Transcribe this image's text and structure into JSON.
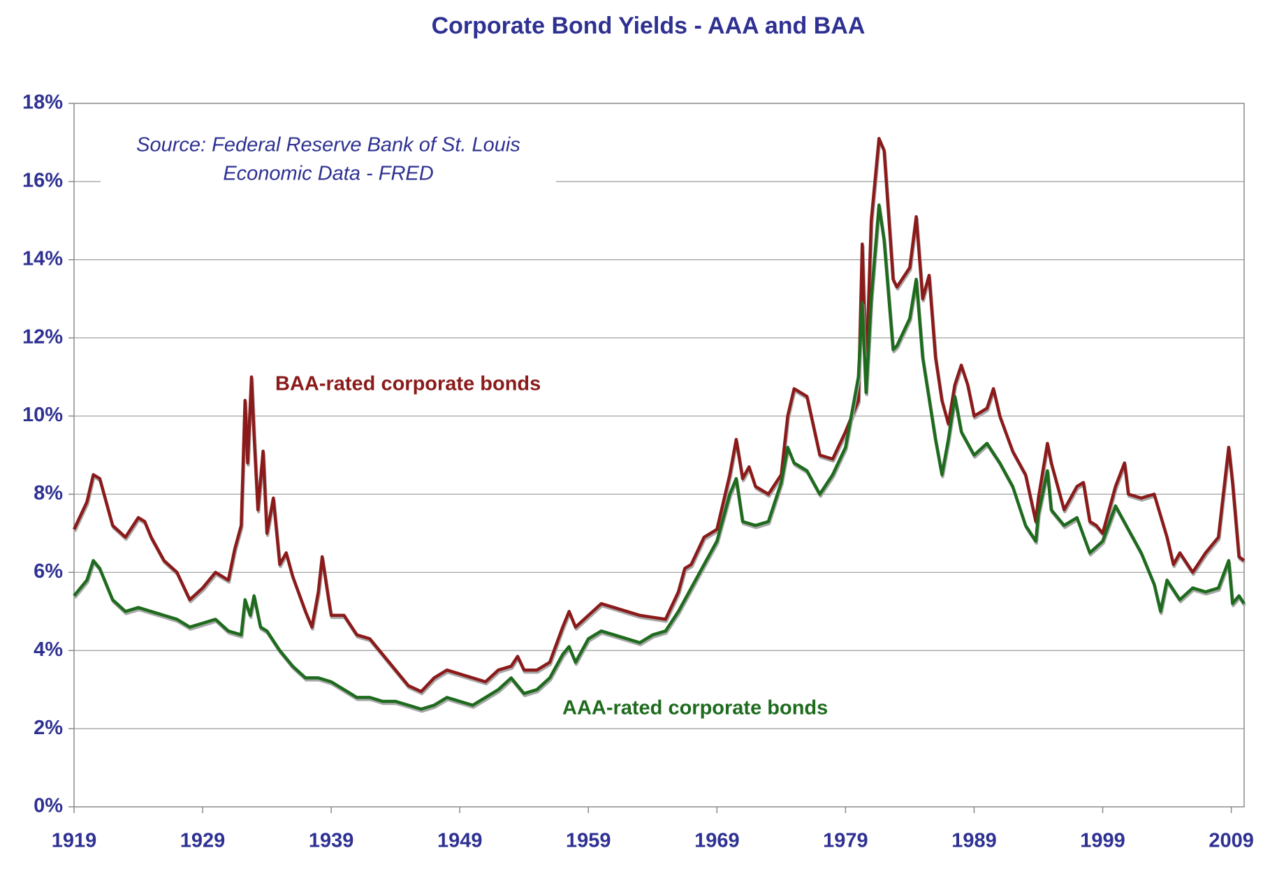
{
  "chart_data": {
    "type": "line",
    "title": "Corporate Bond Yields - AAA and BAA",
    "source": [
      "Source: Federal Reserve Bank of St. Louis",
      "Economic Data - FRED"
    ],
    "xlim": [
      1919,
      2010
    ],
    "xticks": [
      1919,
      1929,
      1939,
      1949,
      1959,
      1969,
      1979,
      1989,
      1999,
      2009
    ],
    "ylim": [
      0,
      18
    ],
    "yticks": [
      {
        "value": 0,
        "label": "0%"
      },
      {
        "value": 2,
        "label": "2%"
      },
      {
        "value": 4,
        "label": "4%"
      },
      {
        "value": 6,
        "label": "6%"
      },
      {
        "value": 8,
        "label": "8%"
      },
      {
        "value": 10,
        "label": "10%"
      },
      {
        "value": 12,
        "label": "12%"
      },
      {
        "value": 14,
        "label": "14%"
      },
      {
        "value": 16,
        "label": "16%"
      },
      {
        "value": 18,
        "label": "18%"
      }
    ],
    "grid": true,
    "series": [
      {
        "name": "BAA-rated corporate bonds",
        "color": "#8b1a1a",
        "x": [
          1919,
          1920,
          1920.5,
          1921,
          1922,
          1923,
          1924,
          1924.5,
          1925,
          1926,
          1927,
          1928,
          1929,
          1930,
          1931,
          1931.5,
          1932,
          1932.3,
          1932.5,
          1932.8,
          1933,
          1933.3,
          1933.7,
          1934,
          1934.5,
          1935,
          1935.5,
          1936,
          1937,
          1937.5,
          1938,
          1938.3,
          1938.8,
          1939,
          1940,
          1941,
          1942,
          1943,
          1944,
          1945,
          1946,
          1947,
          1948,
          1949,
          1950,
          1951,
          1952,
          1953,
          1953.5,
          1954,
          1955,
          1956,
          1957,
          1957.5,
          1958,
          1959,
          1960,
          1961,
          1962,
          1963,
          1964,
          1965,
          1966,
          1966.5,
          1967,
          1968,
          1969,
          1970,
          1970.5,
          1971,
          1971.5,
          1972,
          1973,
          1974,
          1974.5,
          1975,
          1976,
          1977,
          1978,
          1979,
          1980,
          1980.3,
          1980.6,
          1981,
          1981.6,
          1982,
          1982.7,
          1983,
          1984,
          1984.5,
          1985,
          1985.5,
          1986,
          1986.5,
          1987,
          1987.5,
          1988,
          1988.5,
          1989,
          1990,
          1990.5,
          1991,
          1992,
          1993,
          1993.8,
          1994,
          1994.7,
          1995,
          1996,
          1997,
          1997.5,
          1998,
          1998.5,
          1999,
          2000,
          2000.7,
          2001,
          2002,
          2003,
          2004,
          2004.5,
          2005,
          2006,
          2007,
          2008,
          2008.8,
          2009.1,
          2009.6,
          2010
        ],
        "values": [
          7.1,
          7.8,
          8.5,
          8.4,
          7.2,
          6.9,
          7.4,
          7.3,
          6.9,
          6.3,
          6.0,
          5.3,
          5.6,
          6.0,
          5.8,
          6.6,
          7.2,
          10.4,
          8.8,
          11.0,
          9.5,
          7.6,
          9.1,
          7.0,
          7.9,
          6.2,
          6.5,
          5.9,
          5.0,
          4.6,
          5.5,
          6.4,
          5.3,
          4.9,
          4.9,
          4.4,
          4.3,
          3.9,
          3.5,
          3.1,
          2.95,
          3.3,
          3.5,
          3.4,
          3.3,
          3.2,
          3.5,
          3.6,
          3.85,
          3.5,
          3.5,
          3.7,
          4.6,
          5.0,
          4.6,
          4.9,
          5.2,
          5.1,
          5.0,
          4.9,
          4.85,
          4.8,
          5.5,
          6.1,
          6.2,
          6.9,
          7.1,
          8.5,
          9.4,
          8.4,
          8.7,
          8.2,
          8.0,
          8.5,
          10.0,
          10.7,
          10.5,
          9.0,
          8.9,
          9.6,
          10.4,
          14.4,
          11.0,
          15.0,
          17.1,
          16.8,
          13.5,
          13.3,
          13.8,
          15.1,
          13.0,
          13.6,
          11.5,
          10.4,
          9.8,
          10.8,
          11.3,
          10.8,
          10.0,
          10.2,
          10.7,
          10.0,
          9.1,
          8.5,
          7.3,
          7.9,
          9.3,
          8.8,
          7.6,
          8.2,
          8.3,
          7.3,
          7.2,
          7.0,
          8.2,
          8.8,
          8.0,
          7.9,
          8.0,
          6.9,
          6.2,
          6.5,
          6.0,
          6.5,
          6.9,
          9.2,
          8.3,
          6.4,
          6.3
        ]
      },
      {
        "name": "AAA-rated corporate bonds",
        "color": "#1e6b1e",
        "x": [
          1919,
          1920,
          1920.5,
          1921,
          1922,
          1923,
          1924,
          1925,
          1926,
          1927,
          1928,
          1929,
          1930,
          1931,
          1932,
          1932.3,
          1932.7,
          1933,
          1933.5,
          1934,
          1935,
          1936,
          1937,
          1938,
          1939,
          1940,
          1941,
          1942,
          1943,
          1944,
          1945,
          1946,
          1947,
          1948,
          1949,
          1950,
          1951,
          1952,
          1953,
          1954,
          1955,
          1956,
          1957,
          1957.5,
          1958,
          1959,
          1960,
          1961,
          1962,
          1963,
          1964,
          1965,
          1966,
          1967,
          1968,
          1969,
          1970,
          1970.5,
          1971,
          1972,
          1973,
          1974,
          1974.5,
          1975,
          1976,
          1977,
          1978,
          1979,
          1980,
          1980.3,
          1980.6,
          1981,
          1981.6,
          1982,
          1982.7,
          1983,
          1984,
          1984.5,
          1985,
          1986,
          1986.5,
          1987,
          1987.5,
          1988,
          1989,
          1990,
          1991,
          1992,
          1993,
          1993.8,
          1994,
          1994.7,
          1995,
          1996,
          1997,
          1998,
          1999,
          2000,
          2001,
          2002,
          2003,
          2003.5,
          2004,
          2005,
          2006,
          2007,
          2008,
          2008.8,
          2009.1,
          2009.6,
          2010
        ],
        "values": [
          5.4,
          5.8,
          6.3,
          6.1,
          5.3,
          5.0,
          5.1,
          5.0,
          4.9,
          4.8,
          4.6,
          4.7,
          4.8,
          4.5,
          4.4,
          5.3,
          4.9,
          5.4,
          4.6,
          4.5,
          4.0,
          3.6,
          3.3,
          3.3,
          3.2,
          3.0,
          2.8,
          2.8,
          2.7,
          2.7,
          2.6,
          2.5,
          2.6,
          2.8,
          2.7,
          2.6,
          2.8,
          3.0,
          3.3,
          2.9,
          3.0,
          3.3,
          3.9,
          4.1,
          3.7,
          4.3,
          4.5,
          4.4,
          4.3,
          4.2,
          4.4,
          4.5,
          5.0,
          5.6,
          6.2,
          6.8,
          8.0,
          8.4,
          7.3,
          7.2,
          7.3,
          8.3,
          9.2,
          8.8,
          8.6,
          8.0,
          8.5,
          9.2,
          11.0,
          12.9,
          10.6,
          13.0,
          15.4,
          14.5,
          11.7,
          11.8,
          12.5,
          13.5,
          11.5,
          9.4,
          8.5,
          9.4,
          10.5,
          9.6,
          9.0,
          9.3,
          8.8,
          8.2,
          7.2,
          6.8,
          7.5,
          8.6,
          7.6,
          7.2,
          7.4,
          6.5,
          6.8,
          7.7,
          7.1,
          6.5,
          5.7,
          5.0,
          5.8,
          5.3,
          5.6,
          5.5,
          5.6,
          6.3,
          5.2,
          5.4,
          5.2
        ]
      }
    ]
  }
}
